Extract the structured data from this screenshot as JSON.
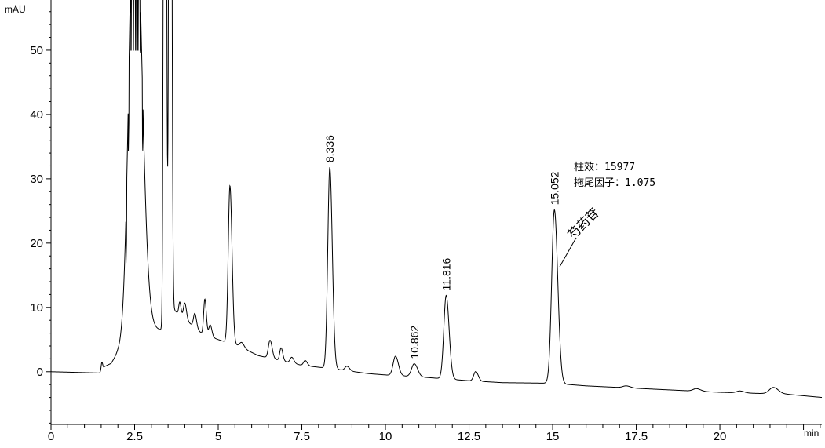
{
  "chart_data": {
    "type": "line",
    "ylabel": "mAU",
    "xlabel": "min",
    "xlim": [
      0,
      23.05
    ],
    "ylim": [
      -8.2,
      57.8
    ],
    "x_ticks": [
      0,
      2.5,
      5,
      7.5,
      10,
      12.5,
      15,
      17.5,
      20
    ],
    "x_tick_labels": [
      "0",
      "2.5",
      "5",
      "7.5",
      "10",
      "12.5",
      "15",
      "17.5",
      "20"
    ],
    "y_ticks": [
      0,
      10,
      20,
      30,
      40,
      50
    ],
    "y_tick_labels": [
      "0",
      "10",
      "20",
      "30",
      "40",
      "50"
    ],
    "grid": false,
    "line_color": "#000000",
    "baseline": [
      [
        0,
        0
      ],
      [
        1.45,
        -0.2
      ],
      [
        1.6,
        0.8
      ],
      [
        1.8,
        1.3
      ],
      [
        2.0,
        3
      ],
      [
        2.8,
        6.8
      ],
      [
        3.3,
        6.5
      ],
      [
        3.7,
        9.5
      ],
      [
        4.5,
        6
      ],
      [
        5.0,
        5
      ],
      [
        5.6,
        4
      ],
      [
        6.2,
        2.5
      ],
      [
        7.5,
        1
      ],
      [
        8.5,
        0.4
      ],
      [
        9.5,
        -0.3
      ],
      [
        10,
        -0.5
      ],
      [
        11,
        -0.8
      ],
      [
        12.5,
        -1.4
      ],
      [
        13.5,
        -1.7
      ],
      [
        15,
        -1.8
      ],
      [
        16,
        -2.2
      ],
      [
        18,
        -2.7
      ],
      [
        20,
        -3.2
      ],
      [
        22,
        -3.5
      ],
      [
        23.05,
        -4
      ]
    ],
    "peaks": [
      {
        "rt": 1.52,
        "height": 1.2,
        "sigma": 0.02
      },
      {
        "rt": 2.5,
        "height": 75,
        "sigma": 0.16
      },
      {
        "rt": 3.4,
        "height": 200,
        "sigma": 0.03
      },
      {
        "rt": 3.56,
        "height": 200,
        "sigma": 0.03
      },
      {
        "rt": 3.85,
        "height": 2,
        "sigma": 0.03
      },
      {
        "rt": 4.0,
        "height": 2.5,
        "sigma": 0.04
      },
      {
        "rt": 4.3,
        "height": 2.2,
        "sigma": 0.04
      },
      {
        "rt": 4.6,
        "height": 5.5,
        "sigma": 0.035
      },
      {
        "rt": 4.76,
        "height": 1.8,
        "sigma": 0.04
      },
      {
        "rt": 5.35,
        "height": 24.5,
        "sigma": 0.05
      },
      {
        "rt": 5.7,
        "height": 0.8,
        "sigma": 0.06
      },
      {
        "rt": 6.55,
        "height": 2.8,
        "sigma": 0.05
      },
      {
        "rt": 6.88,
        "height": 2,
        "sigma": 0.04
      },
      {
        "rt": 7.2,
        "height": 0.9,
        "sigma": 0.05
      },
      {
        "rt": 7.6,
        "height": 0.8,
        "sigma": 0.05
      },
      {
        "rt": 8.336,
        "height": 31.3,
        "sigma": 0.06,
        "label": "8.336"
      },
      {
        "rt": 8.85,
        "height": 0.7,
        "sigma": 0.06
      },
      {
        "rt": 10.3,
        "height": 3,
        "sigma": 0.07
      },
      {
        "rt": 10.862,
        "height": 2,
        "sigma": 0.08,
        "label": "10.862"
      },
      {
        "rt": 11.816,
        "height": 13,
        "sigma": 0.07,
        "label": "11.816"
      },
      {
        "rt": 12.7,
        "height": 1.5,
        "sigma": 0.06
      },
      {
        "rt": 15.052,
        "height": 27,
        "sigma": 0.08,
        "label": "15.052"
      },
      {
        "rt": 17.2,
        "height": 0.3,
        "sigma": 0.1
      },
      {
        "rt": 19.3,
        "height": 0.4,
        "sigma": 0.1
      },
      {
        "rt": 20.6,
        "height": 0.3,
        "sigma": 0.1
      },
      {
        "rt": 21.6,
        "height": 1,
        "sigma": 0.12
      }
    ],
    "annotations": {
      "compound_name": "芍药苷",
      "column_efficiency": "柱效：15977",
      "tailing_factor": "拖尾因子：1.075"
    }
  }
}
